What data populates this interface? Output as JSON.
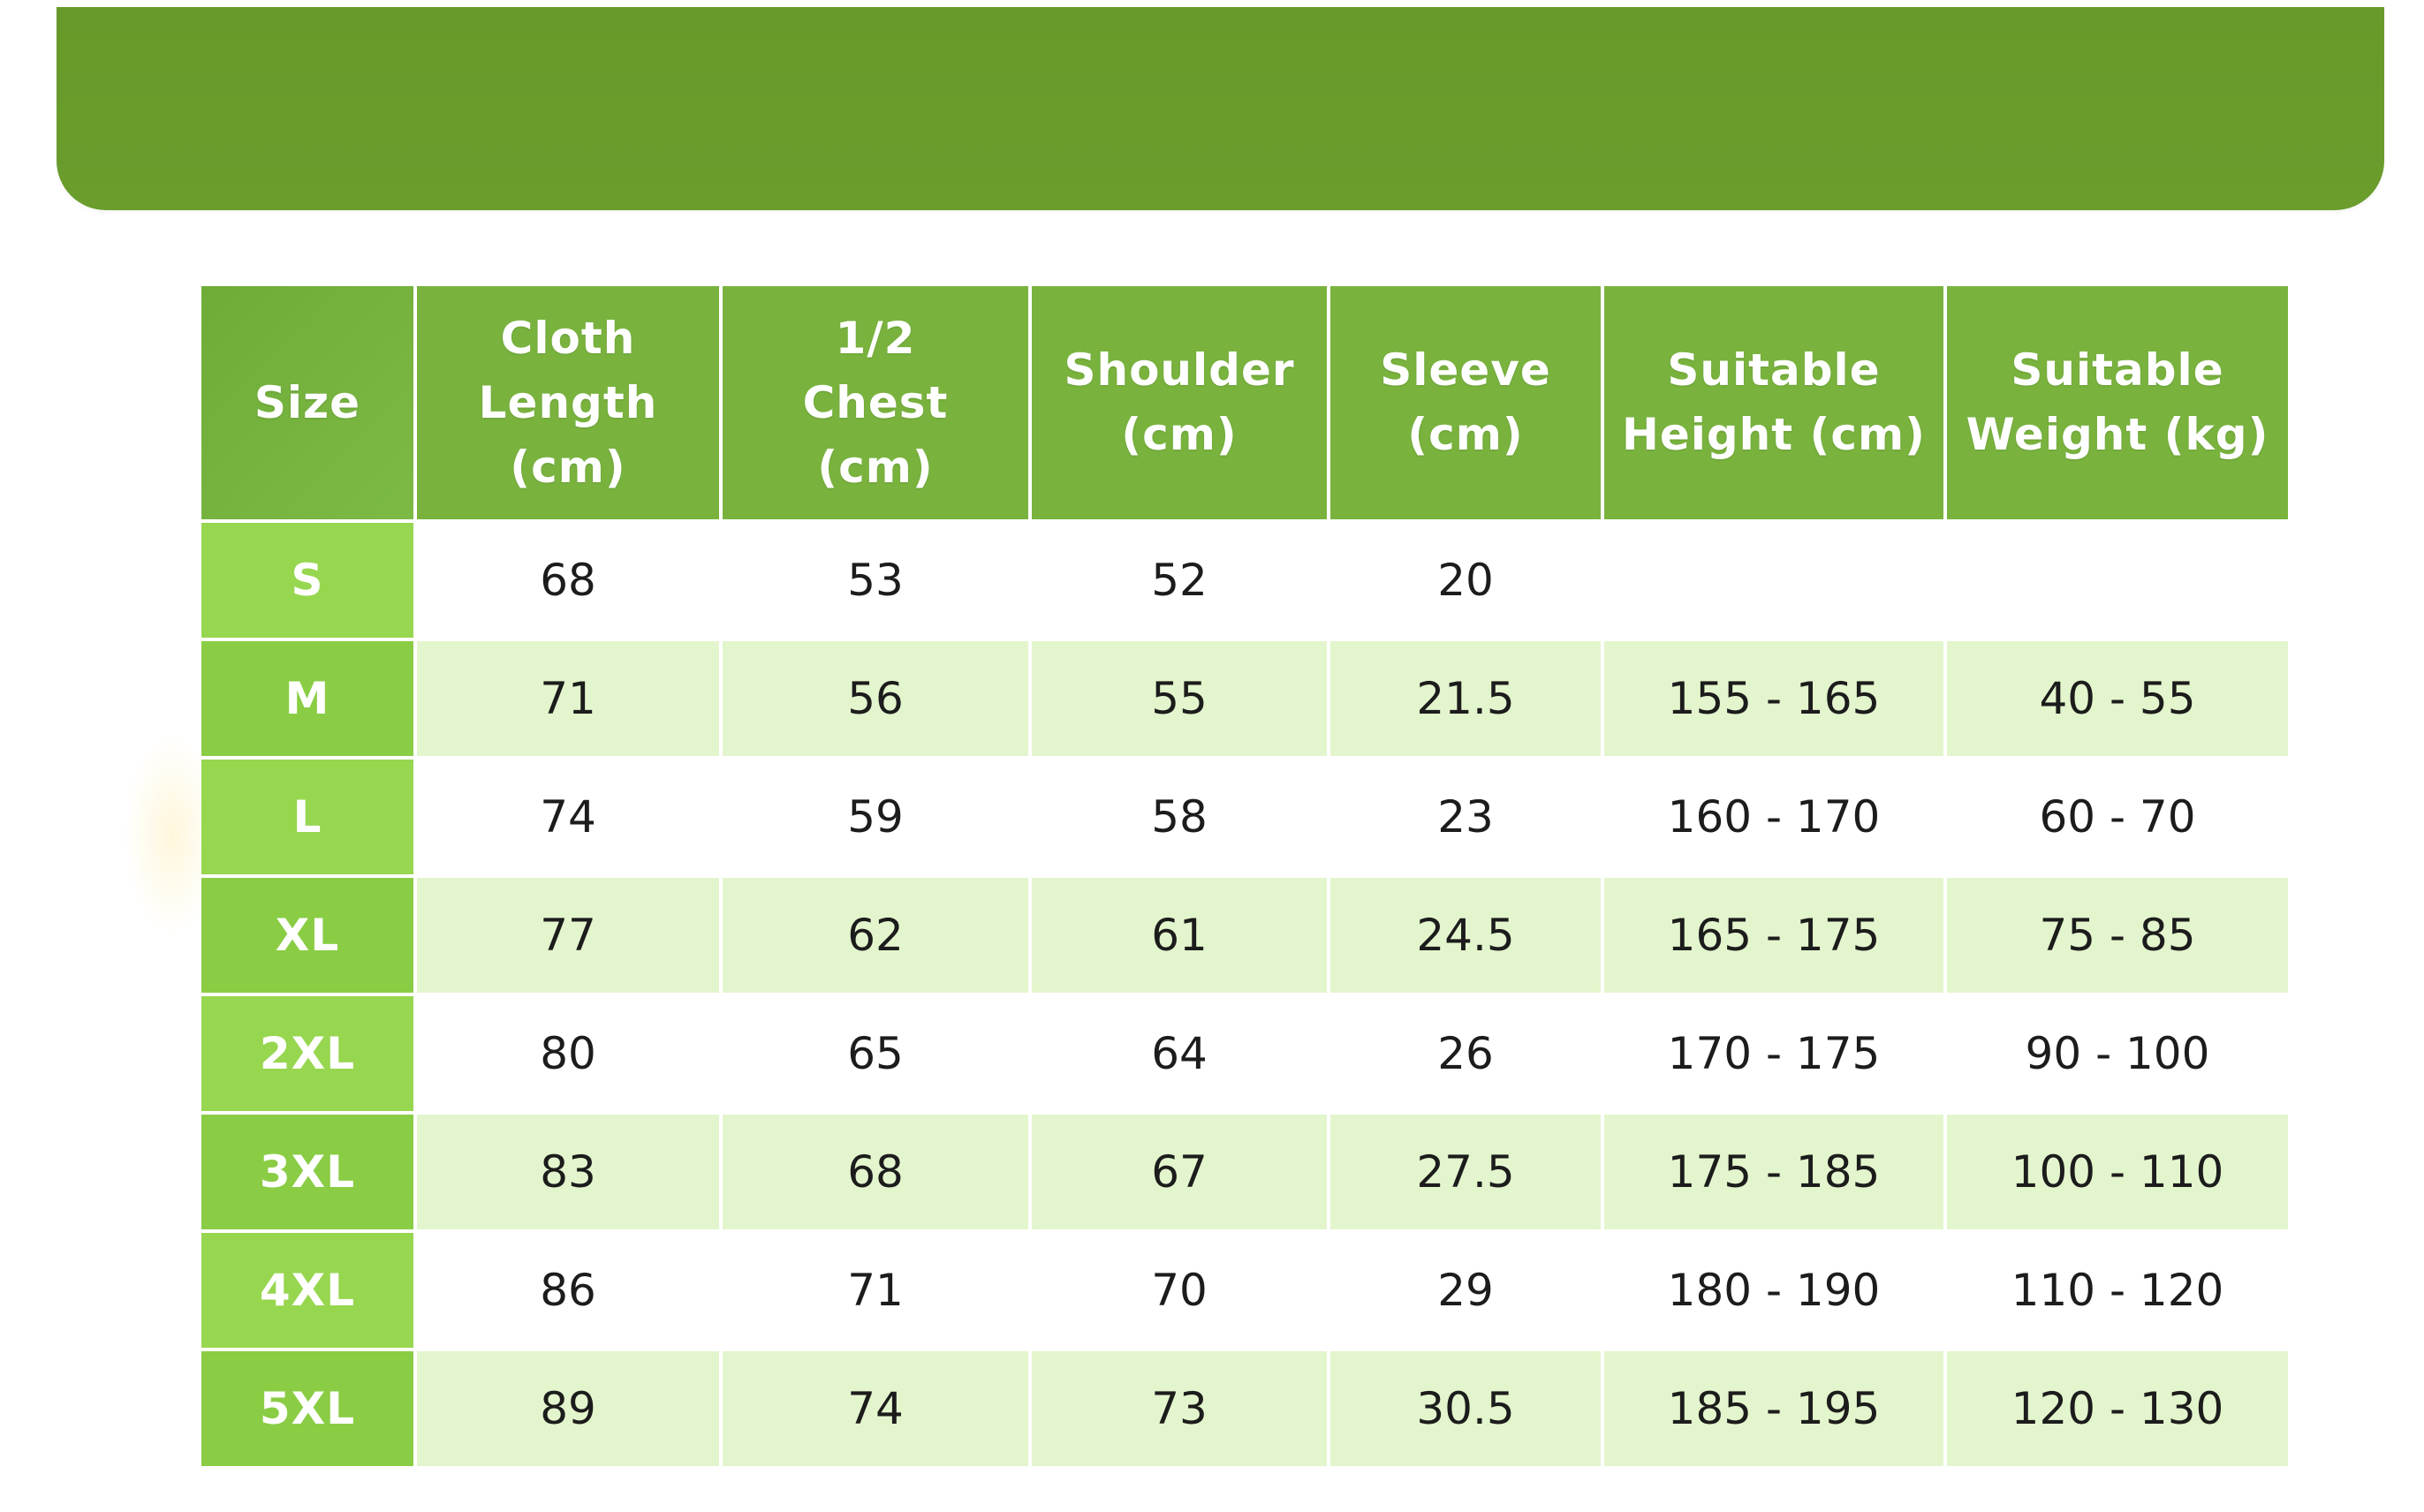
{
  "colors": {
    "banner": "#689b2b",
    "header_bg": "#79b33e",
    "size_cell_bg": "#8fd14a",
    "alt_row_bg": "#e3f5cd"
  },
  "table": {
    "headers": [
      "Size",
      "Cloth Length (cm)",
      "1/2 Chest (cm)",
      "Shoulder (cm)",
      "Sleeve (cm)",
      "Suitable Height (cm)",
      "Suitable Weight (kg)"
    ],
    "rows": [
      [
        "S",
        "68",
        "53",
        "52",
        "20",
        "",
        ""
      ],
      [
        "M",
        "71",
        "56",
        "55",
        "21.5",
        "155 - 165",
        "40 - 55"
      ],
      [
        "L",
        "74",
        "59",
        "58",
        "23",
        "160 - 170",
        "60 - 70"
      ],
      [
        "XL",
        "77",
        "62",
        "61",
        "24.5",
        "165 - 175",
        "75 - 85"
      ],
      [
        "2XL",
        "80",
        "65",
        "64",
        "26",
        "170 - 175",
        "90 - 100"
      ],
      [
        "3XL",
        "83",
        "68",
        "67",
        "27.5",
        "175 - 185",
        "100 - 110"
      ],
      [
        "4XL",
        "86",
        "71",
        "70",
        "29",
        "180 - 190",
        "110 - 120"
      ],
      [
        "5XL",
        "89",
        "74",
        "73",
        "30.5",
        "185 - 195",
        "120 - 130"
      ]
    ]
  }
}
